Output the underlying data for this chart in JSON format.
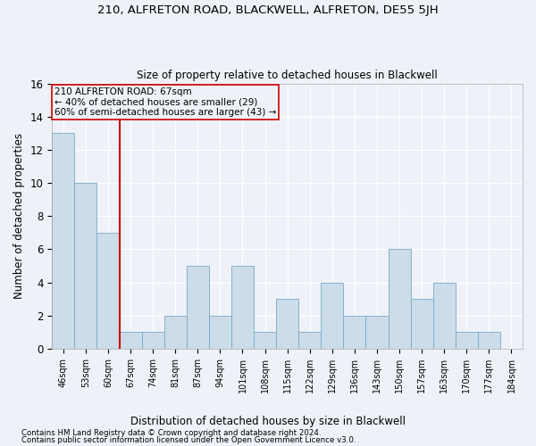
{
  "title": "210, ALFRETON ROAD, BLACKWELL, ALFRETON, DE55 5JH",
  "subtitle": "Size of property relative to detached houses in Blackwell",
  "xlabel_bottom": "Distribution of detached houses by size in Blackwell",
  "ylabel": "Number of detached properties",
  "footer_line1": "Contains HM Land Registry data © Crown copyright and database right 2024.",
  "footer_line2": "Contains public sector information licensed under the Open Government Licence v3.0.",
  "categories": [
    "46sqm",
    "53sqm",
    "60sqm",
    "67sqm",
    "74sqm",
    "81sqm",
    "87sqm",
    "94sqm",
    "101sqm",
    "108sqm",
    "115sqm",
    "122sqm",
    "129sqm",
    "136sqm",
    "143sqm",
    "150sqm",
    "157sqm",
    "163sqm",
    "170sqm",
    "177sqm",
    "184sqm"
  ],
  "values": [
    13,
    10,
    7,
    1,
    1,
    2,
    5,
    2,
    5,
    1,
    3,
    1,
    4,
    2,
    2,
    6,
    3,
    4,
    1,
    1,
    0
  ],
  "bar_color": "#ccdce8",
  "bar_edge_color": "#7aaac8",
  "background_color": "#eef2f8",
  "grid_color": "#ffffff",
  "annotation_box_text_line1": "210 ALFRETON ROAD: 67sqm",
  "annotation_box_text_line2": "← 40% of detached houses are smaller (29)",
  "annotation_box_text_line3": "60% of semi-detached houses are larger (43) →",
  "annotation_box_color": "#cc0000",
  "vline_index": 3,
  "vline_color": "#cc0000",
  "ylim": [
    0,
    16
  ],
  "yticks": [
    0,
    2,
    4,
    6,
    8,
    10,
    12,
    14,
    16
  ]
}
